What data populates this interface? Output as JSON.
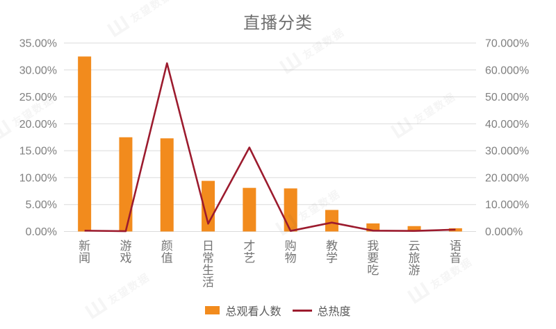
{
  "title": "直播分类",
  "watermark": {
    "logo": "Ш",
    "text": "友望数据"
  },
  "legend": [
    {
      "label": "总观看人数",
      "type": "bar",
      "color": "#F28B1D"
    },
    {
      "label": "总热度",
      "type": "line",
      "color": "#9C1B2E"
    }
  ],
  "chart_data": {
    "type": "bar+line",
    "title": "直播分类",
    "categories": [
      "新闻",
      "游戏",
      "颜值",
      "日常生活",
      "才艺",
      "购物",
      "教学",
      "我要吃",
      "云旅游",
      "语音"
    ],
    "series": [
      {
        "name": "总观看人数",
        "type": "bar",
        "axis": "left",
        "color": "#F28B1D",
        "values": [
          32.5,
          17.5,
          17.3,
          9.4,
          8.1,
          8.0,
          4.0,
          1.5,
          1.0,
          0.6
        ]
      },
      {
        "name": "总热度",
        "type": "line",
        "axis": "right",
        "color": "#9C1B2E",
        "values": [
          0.3,
          0.1,
          62.5,
          2.9,
          31.2,
          0.2,
          3.3,
          0.3,
          0.2,
          0.7
        ]
      }
    ],
    "left_axis": {
      "min": 0,
      "max": 35,
      "step": 5,
      "ticks": [
        "0.00%",
        "5.00%",
        "10.00%",
        "15.00%",
        "20.00%",
        "25.00%",
        "30.00%",
        "35.00%"
      ]
    },
    "right_axis": {
      "min": 0,
      "max": 70,
      "step": 10,
      "ticks": [
        "0.000%",
        "10.000%",
        "20.000%",
        "30.000%",
        "40.000%",
        "50.000%",
        "60.000%",
        "70.000%"
      ]
    },
    "grid": true,
    "legend_position": "bottom",
    "colors": {
      "gridline": "#DBDBDB",
      "axis_text": "#7F7F7F",
      "category_text": "#757575",
      "title_text": "#6E6E6E"
    }
  }
}
